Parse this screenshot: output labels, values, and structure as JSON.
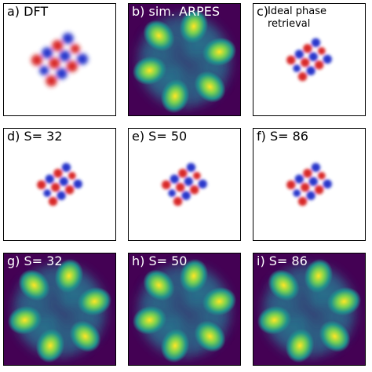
{
  "panels": [
    {
      "id": "a",
      "label": "a) DFT",
      "kind": "orbital-large"
    },
    {
      "id": "b",
      "label": "b) sim. ARPES",
      "kind": "arpes"
    },
    {
      "id": "c",
      "tag": "c)",
      "label": "Ideal phase\nretrieval",
      "kind": "orbital-small"
    },
    {
      "id": "d",
      "label": "d) S= 32",
      "kind": "orbital-small"
    },
    {
      "id": "e",
      "label": "e) S= 50",
      "kind": "orbital-small"
    },
    {
      "id": "f",
      "label": "f) S= 86",
      "kind": "orbital-small"
    },
    {
      "id": "g",
      "label": "g) S= 32",
      "kind": "arpes"
    },
    {
      "id": "h",
      "label": "h) S= 50",
      "kind": "arpes"
    },
    {
      "id": "i",
      "label": "i) S= 86",
      "kind": "arpes"
    }
  ],
  "colors": {
    "positive": "#d61f1f",
    "negative": "#1c2bc8",
    "viridis_dark": "#440154",
    "viridis_mid": "#21918c",
    "viridis_bright": "#fde725"
  }
}
